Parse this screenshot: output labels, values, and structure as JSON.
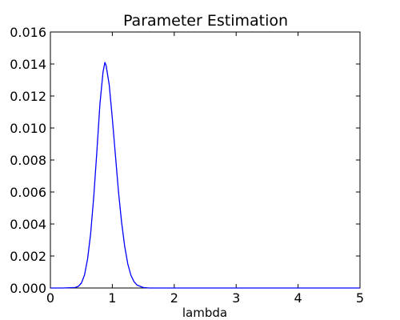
{
  "chart_data": {
    "type": "line",
    "title": "Parameter Estimation",
    "xlabel": "lambda",
    "ylabel": "",
    "xlim": [
      0,
      5
    ],
    "ylim": [
      0,
      0.016
    ],
    "x_ticks": [
      0,
      1,
      2,
      3,
      4,
      5
    ],
    "x_tick_labels": [
      "0",
      "1",
      "2",
      "3",
      "4",
      "5"
    ],
    "y_ticks": [
      0,
      0.002,
      0.004,
      0.006,
      0.008,
      0.01,
      0.012,
      0.014,
      0.016
    ],
    "y_tick_labels": [
      "0.000",
      "0.002",
      "0.004",
      "0.006",
      "0.008",
      "0.010",
      "0.012",
      "0.014",
      "0.016"
    ],
    "grid": false,
    "legend": "none",
    "series": [
      {
        "color": "#0000ff",
        "x": [
          0,
          0.2,
          0.4,
          0.45,
          0.5,
          0.55,
          0.6,
          0.65,
          0.7,
          0.75,
          0.8,
          0.85,
          0.88,
          0.9,
          0.95,
          1.0,
          1.05,
          1.1,
          1.15,
          1.2,
          1.25,
          1.3,
          1.35,
          1.4,
          1.5,
          1.6,
          1.8,
          2.0,
          3.0,
          4.0,
          5.0
        ],
        "y": [
          0,
          0,
          3e-05,
          0.0001,
          0.0003,
          0.0008,
          0.0018,
          0.0034,
          0.0057,
          0.0085,
          0.0115,
          0.0135,
          0.0141,
          0.0139,
          0.0127,
          0.0106,
          0.0083,
          0.006,
          0.0041,
          0.0026,
          0.0015,
          0.0008,
          0.0004,
          0.00018,
          3e-05,
          0,
          0,
          0,
          0,
          0,
          0
        ]
      }
    ]
  }
}
